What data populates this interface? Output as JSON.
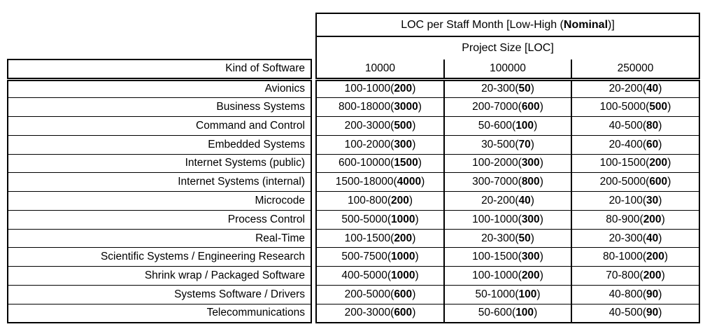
{
  "page": {
    "background": "#ffffff",
    "text_color": "#000000",
    "border_color": "#000000"
  },
  "chart_data": {
    "type": "table",
    "title": "LOC per Staff Month [Low-High (Nominal)]",
    "title_prefix": "LOC per Staff Month [Low-High (",
    "title_bold": "Nominal",
    "title_suffix": ")]",
    "subheader": "Project Size [LOC]",
    "row_header": "Kind of Software",
    "columns": [
      "10000",
      "100000",
      "250000"
    ],
    "rows": [
      {
        "kind": "Avionics",
        "cells": [
          {
            "low_high": "100-1000",
            "nominal": "200"
          },
          {
            "low_high": "20-300",
            "nominal": "50"
          },
          {
            "low_high": "20-200",
            "nominal": "40"
          }
        ]
      },
      {
        "kind": "Business Systems",
        "cells": [
          {
            "low_high": "800-18000",
            "nominal": "3000"
          },
          {
            "low_high": "200-7000",
            "nominal": "600"
          },
          {
            "low_high": "100-5000",
            "nominal": "500"
          }
        ]
      },
      {
        "kind": "Command and Control",
        "cells": [
          {
            "low_high": "200-3000",
            "nominal": "500"
          },
          {
            "low_high": "50-600",
            "nominal": "100"
          },
          {
            "low_high": "40-500",
            "nominal": "80"
          }
        ]
      },
      {
        "kind": "Embedded Systems",
        "cells": [
          {
            "low_high": "100-2000",
            "nominal": "300"
          },
          {
            "low_high": "30-500",
            "nominal": "70"
          },
          {
            "low_high": "20-400",
            "nominal": "60"
          }
        ]
      },
      {
        "kind": "Internet Systems (public)",
        "cells": [
          {
            "low_high": "600-10000",
            "nominal": "1500"
          },
          {
            "low_high": "100-2000",
            "nominal": "300"
          },
          {
            "low_high": "100-1500",
            "nominal": "200"
          }
        ]
      },
      {
        "kind": "Internet Systems (internal)",
        "cells": [
          {
            "low_high": "1500-18000",
            "nominal": "4000"
          },
          {
            "low_high": "300-7000",
            "nominal": "800"
          },
          {
            "low_high": "200-5000",
            "nominal": "600"
          }
        ]
      },
      {
        "kind": "Microcode",
        "cells": [
          {
            "low_high": "100-800",
            "nominal": "200"
          },
          {
            "low_high": "20-200",
            "nominal": "40"
          },
          {
            "low_high": "20-100",
            "nominal": "30"
          }
        ]
      },
      {
        "kind": "Process Control",
        "cells": [
          {
            "low_high": "500-5000",
            "nominal": "1000"
          },
          {
            "low_high": "100-1000",
            "nominal": "300"
          },
          {
            "low_high": "80-900",
            "nominal": "200"
          }
        ]
      },
      {
        "kind": "Real-Time",
        "cells": [
          {
            "low_high": "100-1500",
            "nominal": "200"
          },
          {
            "low_high": "20-300",
            "nominal": "50"
          },
          {
            "low_high": "20-300",
            "nominal": "40"
          }
        ]
      },
      {
        "kind": "Scientific Systems / Engineering Research",
        "cells": [
          {
            "low_high": "500-7500",
            "nominal": "1000"
          },
          {
            "low_high": "100-1500",
            "nominal": "300"
          },
          {
            "low_high": "80-1000",
            "nominal": "200"
          }
        ]
      },
      {
        "kind": "Shrink wrap / Packaged Software",
        "cells": [
          {
            "low_high": "400-5000",
            "nominal": "1000"
          },
          {
            "low_high": "100-1000",
            "nominal": "200"
          },
          {
            "low_high": "70-800",
            "nominal": "200"
          }
        ]
      },
      {
        "kind": "Systems Software / Drivers",
        "cells": [
          {
            "low_high": "200-5000",
            "nominal": "600"
          },
          {
            "low_high": "50-1000",
            "nominal": "100"
          },
          {
            "low_high": "40-800",
            "nominal": "90"
          }
        ]
      },
      {
        "kind": "Telecommunications",
        "cells": [
          {
            "low_high": "200-3000",
            "nominal": "600"
          },
          {
            "low_high": "50-600",
            "nominal": "100"
          },
          {
            "low_high": "40-500",
            "nominal": "90"
          }
        ]
      }
    ]
  }
}
